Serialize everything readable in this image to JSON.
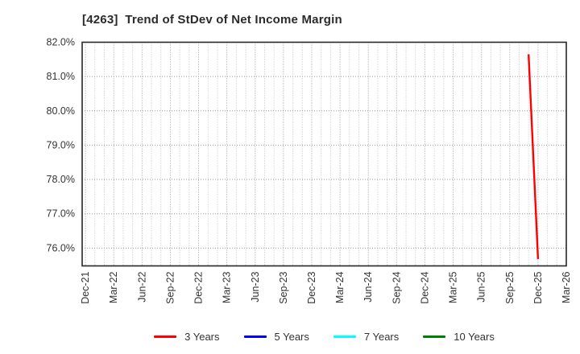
{
  "chart": {
    "title": "[4263]  Trend of StDev of Net Income Margin"
  },
  "chart_data": {
    "type": "line",
    "title": "[4263]  Trend of StDev of Net Income Margin",
    "x_axis": {
      "unit": "month",
      "start_label": "Dec-21",
      "end_label": "Mar-26",
      "months_total": 51,
      "xlim_months": [
        -0.35,
        51
      ],
      "tick_every_months": 3,
      "tick_labels": [
        "Dec-21",
        "Mar-22",
        "Jun-22",
        "Sep-22",
        "Dec-22",
        "Mar-23",
        "Jun-23",
        "Sep-23",
        "Dec-23",
        "Mar-24",
        "Jun-24",
        "Sep-24",
        "Dec-24",
        "Mar-25",
        "Jun-25",
        "Sep-25",
        "Dec-25",
        "Mar-26"
      ]
    },
    "y_axis": {
      "ylim": [
        75.48,
        82.0
      ],
      "ticks": [
        82,
        81,
        80,
        79,
        78,
        77,
        76
      ],
      "tick_labels": [
        "82.0%",
        "81.0%",
        "80.0%",
        "79.0%",
        "78.0%",
        "77.0%",
        "76.0%"
      ]
    },
    "grid": {
      "vertical": "monthly-dotted",
      "horizontal": "1pct-dotted",
      "minor_color": "#c0c0c0",
      "major_color": "#999999",
      "border_color": "#262626"
    },
    "legend_position": "bottom",
    "series": [
      {
        "name": "3 Years",
        "color": "#ff0000",
        "points": [
          {
            "month_index": 47,
            "label": "Nov-25",
            "value": 81.65
          },
          {
            "month_index": 48,
            "label": "Dec-25",
            "value": 75.68
          }
        ]
      },
      {
        "name": "5 Years",
        "color": "#0000ff",
        "points": []
      },
      {
        "name": "7 Years",
        "color": "#00ffff",
        "points": []
      },
      {
        "name": "10 Years",
        "color": "#008000",
        "points": []
      }
    ]
  }
}
